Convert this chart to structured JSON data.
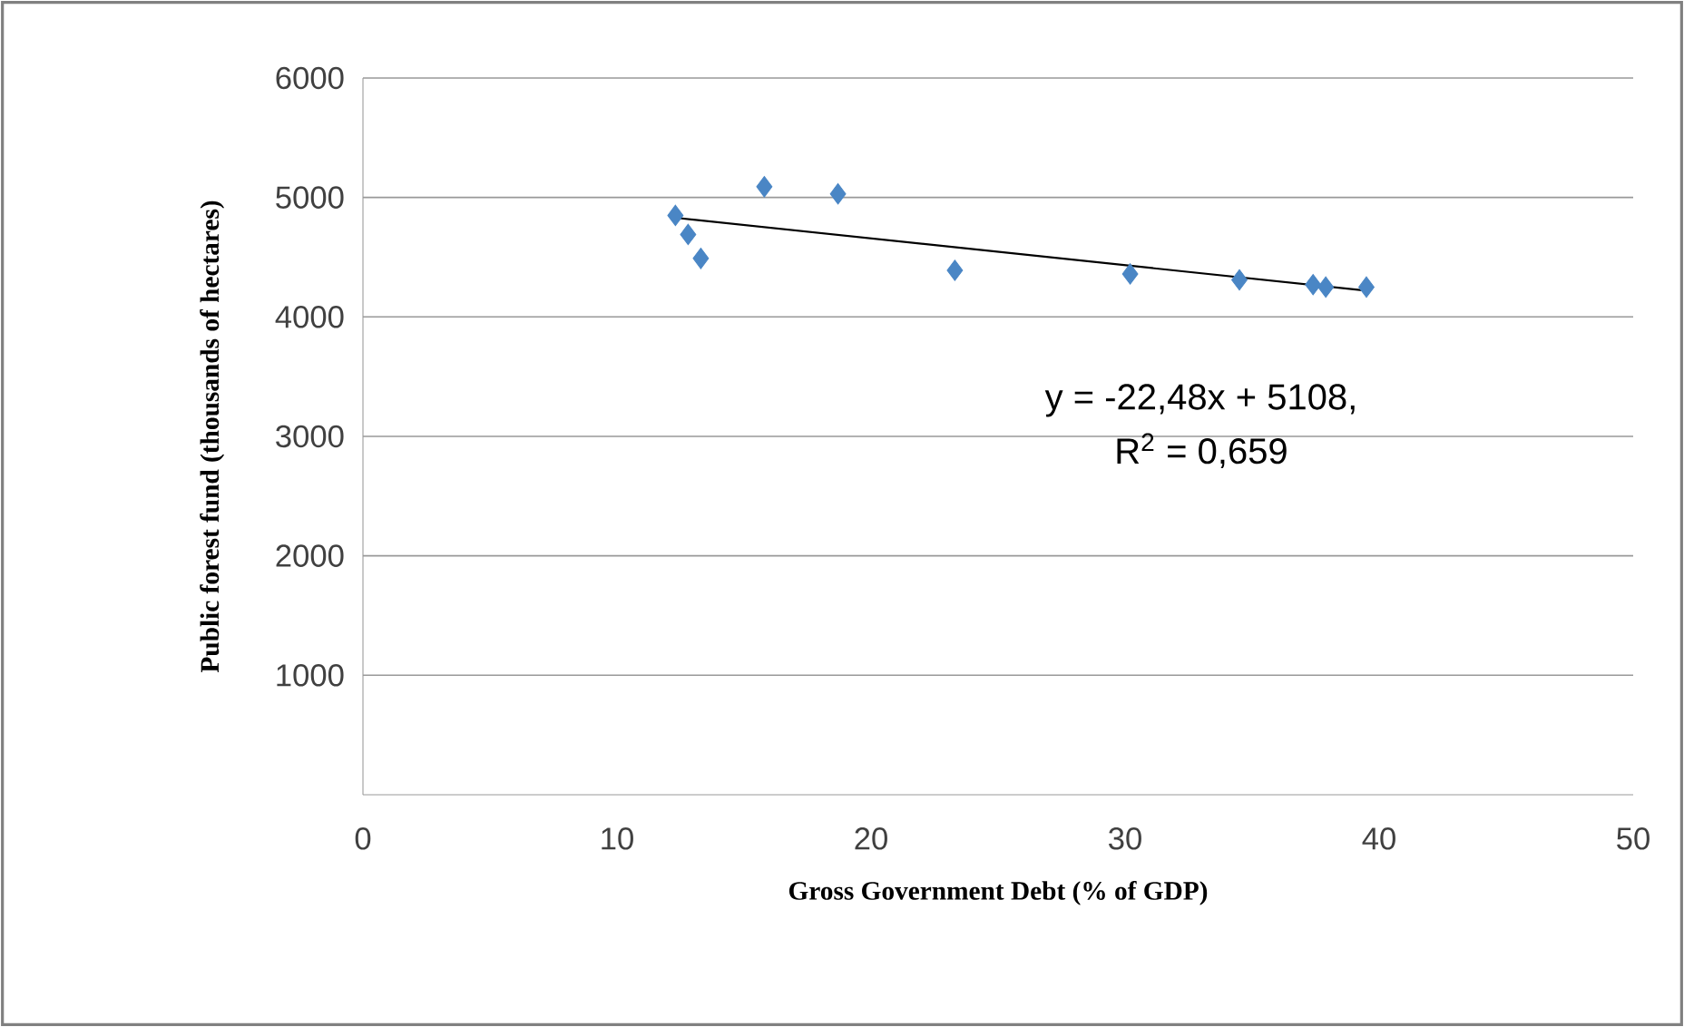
{
  "chart_data": {
    "type": "scatter",
    "xlabel": "Gross Government Debt (% of GDP)",
    "ylabel": "Public forest fund (thousands of hectares)",
    "xlim": [
      0,
      50
    ],
    "xticks": [
      0,
      10,
      20,
      30,
      40,
      50
    ],
    "ylim": [
      0,
      6000
    ],
    "yticks": [
      1000,
      2000,
      3000,
      4000,
      5000,
      6000
    ],
    "grid": "y",
    "series": [
      {
        "color": "#4a86c5",
        "marker": "diamond",
        "x": [
          12.3,
          12.8,
          13.3,
          15.8,
          18.7,
          23.3,
          30.2,
          34.5,
          37.4,
          37.9,
          39.5
        ],
        "values": [
          4850,
          4690,
          4490,
          5090,
          5030,
          4390,
          4360,
          4310,
          4270,
          4250,
          4250
        ]
      },
      {
        "type": "line",
        "marker": "none",
        "color": "#000000",
        "x": [
          12.3,
          39.5
        ],
        "values": [
          4830,
          4220
        ]
      }
    ],
    "annotations": [
      "y = -22,48x + 5108,",
      "R$^{2}$ = 0,659"
    ]
  }
}
